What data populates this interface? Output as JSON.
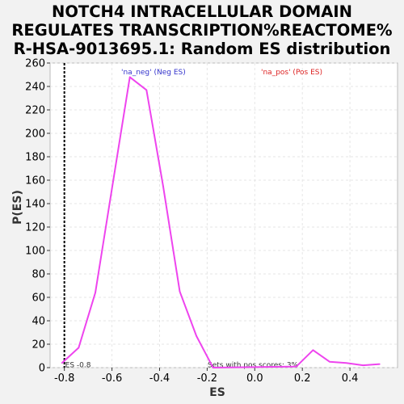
{
  "title_lines": [
    "NOTCH4 INTRACELLULAR DOMAIN",
    "REGULATES TRANSCRIPTION%REACTOME%",
    "R-HSA-9013695.1: Random ES distribution"
  ],
  "chart_data": {
    "type": "line",
    "xlabel": "ES",
    "ylabel": "P(ES)",
    "xlim": [
      -0.86,
      0.6
    ],
    "ylim": [
      0,
      260
    ],
    "x_ticks": [
      "-0.8",
      "-0.6",
      "-0.4",
      "-0.2",
      "0.0",
      "0.2",
      "0.4"
    ],
    "y_ticks": [
      "0",
      "20",
      "40",
      "60",
      "80",
      "100",
      "120",
      "140",
      "160",
      "180",
      "200",
      "220",
      "240",
      "260"
    ],
    "grid": true,
    "series": [
      {
        "color": "#ee44ee",
        "x": [
          -0.81,
          -0.74,
          -0.67,
          -0.6,
          -0.525,
          -0.455,
          -0.385,
          -0.315,
          -0.245,
          -0.175,
          0.175,
          0.245,
          0.315,
          0.385,
          0.455,
          0.525
        ],
        "y": [
          4,
          17,
          64,
          153,
          248,
          237,
          155,
          65,
          27,
          0,
          1,
          15,
          5,
          4,
          2,
          3
        ]
      }
    ],
    "marker_line": {
      "x": -0.8,
      "label": "ES -0.8"
    },
    "annotations": {
      "neg_label": "'na_neg' (Neg ES)",
      "pos_label": "'na_pos' (Pos ES)",
      "pos_scores": "Sets with pos scores: 3%"
    },
    "colors": {
      "neg": "#3333cc",
      "pos": "#dd2222",
      "line": "#ee44ee"
    }
  }
}
